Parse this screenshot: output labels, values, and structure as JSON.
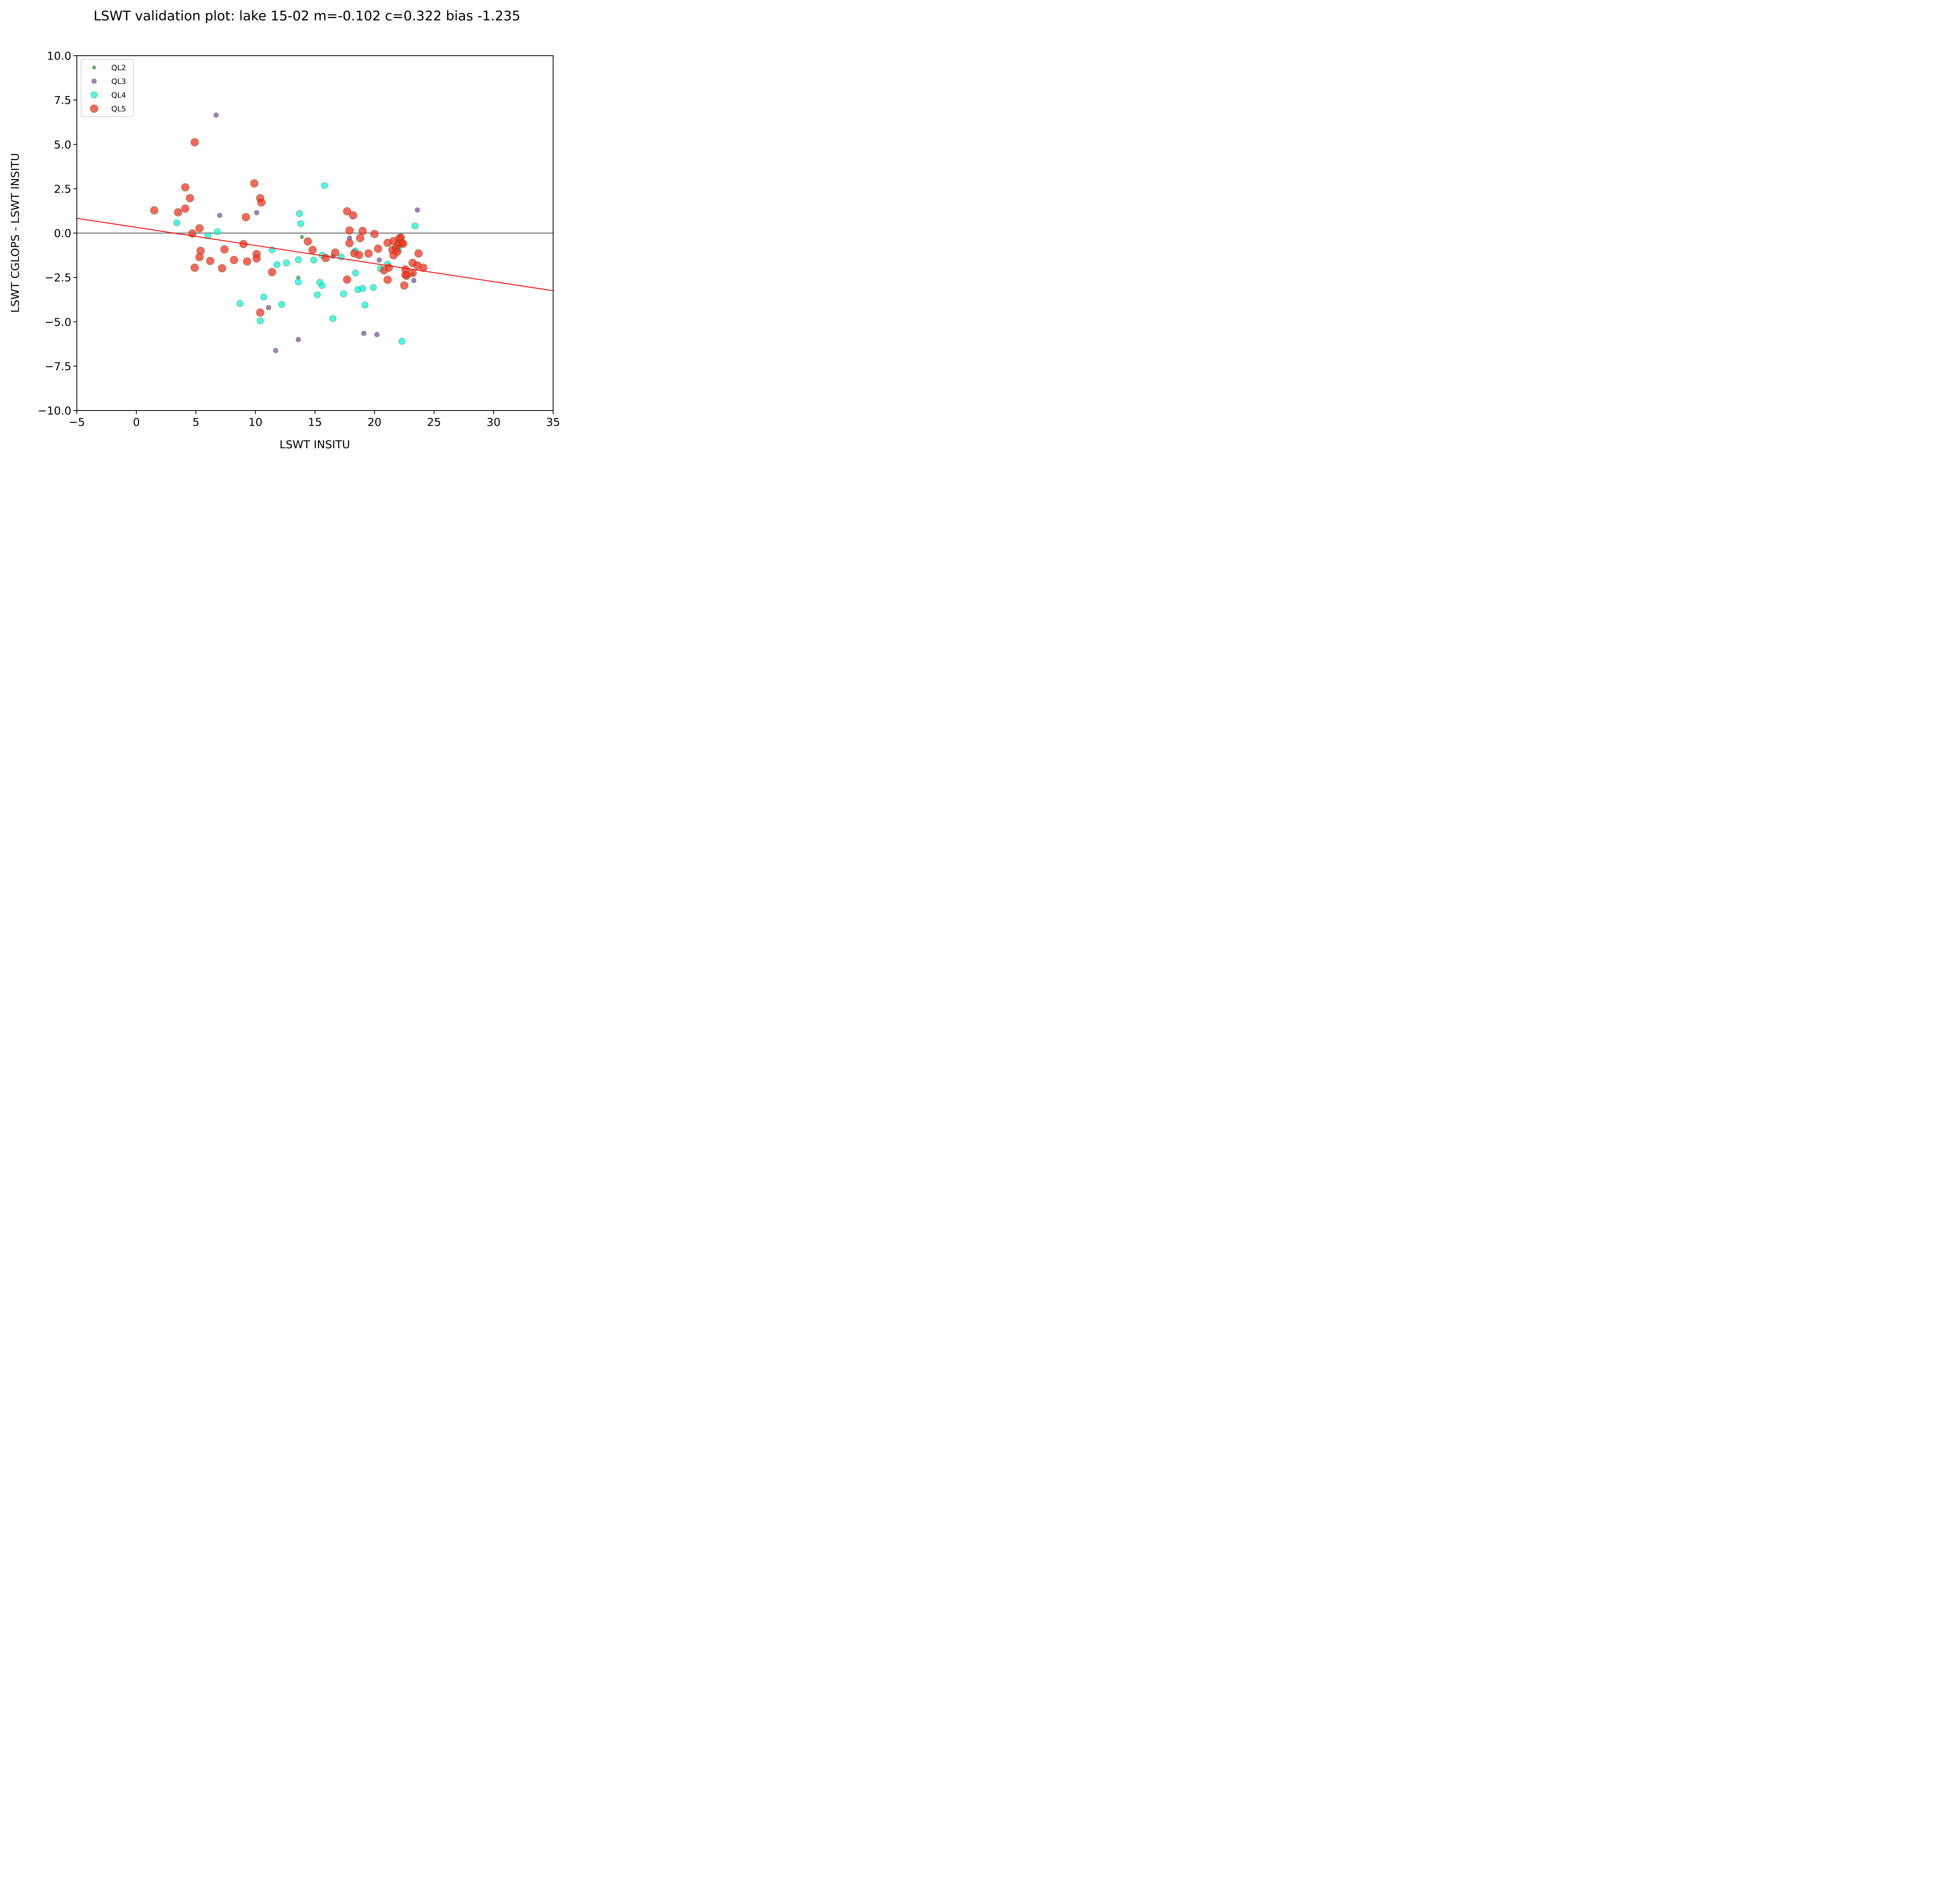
{
  "chart_data": {
    "type": "scatter",
    "title": "LSWT validation plot: lake 15-02 m=-0.102 c=0.322 bias -1.235",
    "xlabel": "LSWT INSITU",
    "ylabel": "LSWT CGLOPS - LSWT INSITU",
    "xlim": [
      -5,
      35
    ],
    "ylim": [
      -10,
      10
    ],
    "xticks": [
      -5,
      0,
      5,
      10,
      15,
      20,
      25,
      30,
      35
    ],
    "yticks": [
      -10,
      -7.5,
      -5,
      -2.5,
      0,
      2.5,
      5,
      7.5,
      10
    ],
    "xtick_labels": [
      "−5",
      "0",
      "5",
      "10",
      "15",
      "20",
      "25",
      "30",
      "35"
    ],
    "ytick_labels": [
      "−10.0",
      "−7.5",
      "−5.0",
      "−2.5",
      "0.0",
      "2.5",
      "5.0",
      "7.5",
      "10.0"
    ],
    "grid": false,
    "legend_position": "top-left",
    "zero_line": {
      "y": 0,
      "color": "#707070"
    },
    "fit_line": {
      "slope": -0.102,
      "intercept": 0.322,
      "color": "#ff0000"
    },
    "series": [
      {
        "name": "QL2",
        "color": "#2ca02c",
        "size": "small",
        "x": [
          13.9,
          13.6,
          23.2
        ],
        "y": [
          -0.22,
          -2.5,
          -2.3
        ]
      },
      {
        "name": "QL3",
        "color": "#8e44ad",
        "size": "medium",
        "x": [
          6.7,
          7.0,
          10.1,
          16.5,
          17.9,
          20.4,
          23.6,
          23.3,
          11.1,
          11.7,
          13.6,
          19.1,
          20.2
        ],
        "y": [
          6.65,
          1.0,
          1.15,
          -1.3,
          -0.28,
          -1.52,
          1.3,
          -2.67,
          -4.2,
          -6.62,
          -6.0,
          -5.65,
          -5.72
        ]
      },
      {
        "name": "QL4",
        "color": "#00ffe0",
        "size": "large",
        "x": [
          3.4,
          6.0,
          6.8,
          11.4,
          11.8,
          12.6,
          13.6,
          13.7,
          13.8,
          13.6,
          14.9,
          15.6,
          15.8,
          15.2,
          15.6,
          15.4,
          16.5,
          17.2,
          17.4,
          18.4,
          18.4,
          18.6,
          19.0,
          19.2,
          19.9,
          20.5,
          21.1,
          22.0,
          22.3,
          23.4,
          10.7,
          10.4,
          12.2,
          8.7
        ],
        "y": [
          0.58,
          -0.15,
          0.08,
          -0.95,
          -1.78,
          -1.68,
          -1.5,
          1.1,
          0.53,
          -2.75,
          -1.52,
          -1.25,
          2.68,
          -3.48,
          -2.95,
          -2.78,
          -4.82,
          -1.35,
          -3.42,
          -1.0,
          -2.25,
          -3.18,
          -3.12,
          -4.05,
          -3.07,
          -2.0,
          -1.75,
          -0.88,
          -6.1,
          0.4,
          -3.6,
          -4.95,
          -4.02,
          -3.97
        ]
      },
      {
        "name": "QL5",
        "color": "#ff2a1a",
        "size": "xlarge",
        "x": [
          1.5,
          3.5,
          4.1,
          4.1,
          4.5,
          4.9,
          4.7,
          4.9,
          5.3,
          5.4,
          5.3,
          6.2,
          7.2,
          7.4,
          8.2,
          9.0,
          9.3,
          9.2,
          9.9,
          10.1,
          10.1,
          10.4,
          10.5,
          10.4,
          11.4,
          14.4,
          14.8,
          15.9,
          16.7,
          17.7,
          17.7,
          18.2,
          17.9,
          17.9,
          18.3,
          18.7,
          18.8,
          19.0,
          19.5,
          20.0,
          20.3,
          20.8,
          21.1,
          21.2,
          21.1,
          21.5,
          21.6,
          21.6,
          21.8,
          21.9,
          22.0,
          22.1,
          22.2,
          22.3,
          22.4,
          22.5,
          22.6,
          22.7,
          22.6,
          23.2,
          23.2,
          23.6,
          23.7,
          24.1
        ],
        "y": [
          1.28,
          1.17,
          2.58,
          1.38,
          1.97,
          5.12,
          -0.02,
          -1.95,
          0.27,
          -1.0,
          -1.35,
          -1.57,
          -1.98,
          -0.92,
          -1.52,
          -0.62,
          -1.6,
          0.9,
          2.8,
          -1.18,
          -1.43,
          1.97,
          1.73,
          -4.48,
          -2.2,
          -0.47,
          -0.95,
          -1.4,
          -1.1,
          1.23,
          -2.62,
          1.0,
          0.15,
          -0.57,
          -1.14,
          -1.23,
          -0.28,
          0.12,
          -1.15,
          -0.05,
          -0.88,
          -2.1,
          -0.55,
          -1.95,
          -2.63,
          -0.95,
          -1.25,
          -0.45,
          -0.85,
          -1.05,
          -0.62,
          -0.3,
          -0.25,
          -0.55,
          -0.6,
          -2.95,
          -2.05,
          -2.4,
          -2.35,
          -2.25,
          -1.68,
          -1.82,
          -1.15,
          -1.95
        ]
      }
    ]
  }
}
